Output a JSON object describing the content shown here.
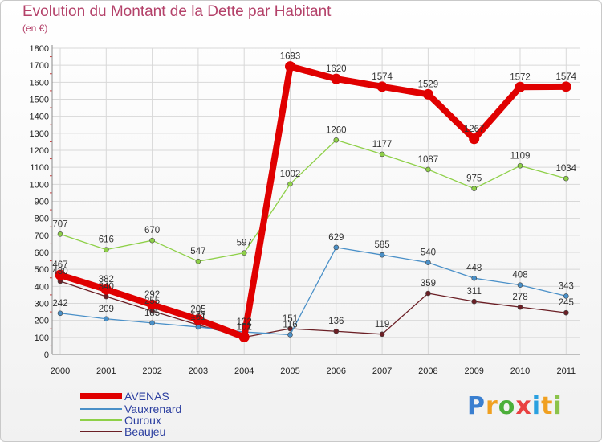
{
  "header": {
    "title": "Evolution du Montant de la Dette par Habitant",
    "subtitle": "(en €)"
  },
  "logo": {
    "text": "Proxiti",
    "colors": [
      "#3a7fd0",
      "#f0a020",
      "#4caf3a",
      "#e94040",
      "#2aa0e0",
      "#f0a020",
      "#8bc34a"
    ]
  },
  "chart_data": {
    "type": "line",
    "x": [
      "2000",
      "2001",
      "2002",
      "2003",
      "2004",
      "2005",
      "2006",
      "2007",
      "2008",
      "2009",
      "2010",
      "2011"
    ],
    "ylim": [
      0,
      1800
    ],
    "yticks": [
      "0",
      "100",
      "200",
      "300",
      "400",
      "500",
      "600",
      "700",
      "800",
      "900",
      "1000",
      "1100",
      "1200",
      "1300",
      "1400",
      "1500",
      "1600",
      "1700",
      "1800"
    ],
    "grid": true,
    "legend_position": "bottom-left",
    "series": [
      {
        "name": "Beaujeu",
        "color": "#6b1f25",
        "values": [
          430,
          340,
          255,
          173,
          101,
          151,
          136,
          119,
          359,
          311,
          278,
          245
        ],
        "labels": [
          "430",
          "340",
          "255",
          "173",
          "101",
          "151",
          "136",
          "119",
          "359",
          "311",
          "278",
          "245"
        ]
      },
      {
        "name": "Vauxrenard",
        "color": "#4a90c8",
        "values": [
          242,
          209,
          185,
          161,
          132,
          116,
          629,
          585,
          540,
          448,
          408,
          343
        ],
        "labels": [
          "242",
          "209",
          "185",
          "161",
          "132",
          "116",
          "629",
          "585",
          "540",
          "448",
          "408",
          "343"
        ]
      },
      {
        "name": "Ouroux",
        "color": "#8ed048",
        "values": [
          707,
          616,
          670,
          547,
          597,
          1002,
          1260,
          1177,
          1087,
          975,
          1109,
          1034
        ],
        "labels": [
          "707",
          "616",
          "670",
          "547",
          "597",
          "1002",
          "1260",
          "1177",
          "1087",
          "975",
          "1109",
          "1034"
        ]
      },
      {
        "name": "AVENAS",
        "color": "#e00000",
        "values": [
          467,
          382,
          292,
          205,
          102,
          1693,
          1620,
          1574,
          1529,
          1267,
          1572,
          1574
        ],
        "labels": [
          "467",
          "382",
          "292",
          "205",
          "102",
          "1693",
          "1620",
          "1574",
          "1529",
          "1267",
          "1572",
          "1574"
        ]
      }
    ]
  },
  "legend": [
    {
      "name": "AVENAS",
      "color": "#e00000"
    },
    {
      "name": "Vauxrenard",
      "color": "#4a90c8"
    },
    {
      "name": "Ouroux",
      "color": "#8ed048"
    },
    {
      "name": "Beaujeu",
      "color": "#6b1f25"
    }
  ]
}
